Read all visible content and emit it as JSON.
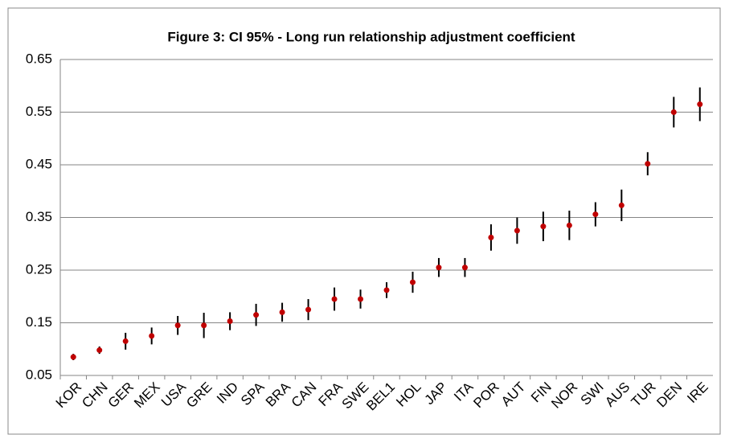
{
  "chart_data": {
    "type": "errorbar",
    "title": "Figure 3: CI 95% -  Long run relationship adjustment coefficient",
    "categories": [
      "KOR",
      "CHN",
      "GER",
      "MEX",
      "USA",
      "GRE",
      "IND",
      "SPA",
      "BRA",
      "CAN",
      "FRA",
      "SWE",
      "BEL1",
      "HOL",
      "JAP",
      "ITA",
      "POR",
      "AUT",
      "FIN",
      "NOR",
      "SWI",
      "AUS",
      "TUR",
      "DEN",
      "IRE"
    ],
    "values": [
      0.085,
      0.098,
      0.115,
      0.125,
      0.145,
      0.145,
      0.153,
      0.165,
      0.17,
      0.175,
      0.195,
      0.195,
      0.212,
      0.227,
      0.255,
      0.255,
      0.312,
      0.325,
      0.333,
      0.335,
      0.356,
      0.373,
      0.452,
      0.55,
      0.565
    ],
    "errors": [
      0.006,
      0.007,
      0.016,
      0.016,
      0.018,
      0.024,
      0.017,
      0.021,
      0.018,
      0.02,
      0.022,
      0.018,
      0.015,
      0.02,
      0.018,
      0.018,
      0.025,
      0.025,
      0.028,
      0.028,
      0.023,
      0.03,
      0.022,
      0.029,
      0.032
    ],
    "color": "#c00000",
    "error_color": "#000000",
    "ylim": [
      0.05,
      0.65
    ],
    "yticks": [
      0.05,
      0.15,
      0.25,
      0.35,
      0.45,
      0.55,
      0.65
    ],
    "grid": true
  }
}
